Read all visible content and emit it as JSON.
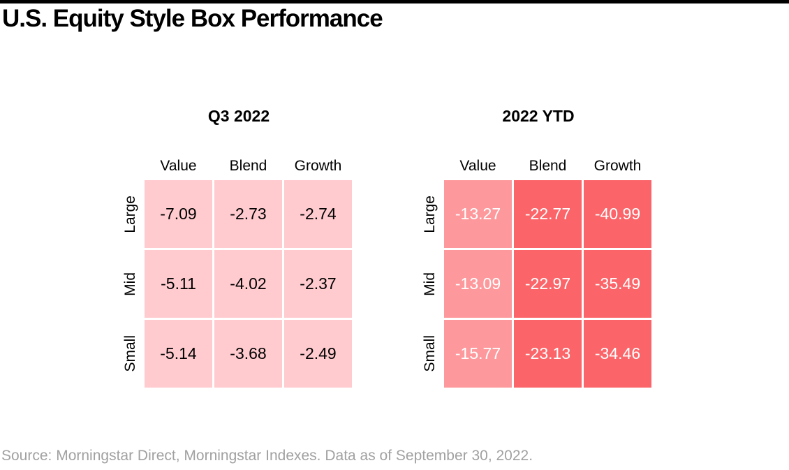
{
  "page": {
    "title": "U.S. Equity Style Box Performance",
    "source_note": "Source: Morningstar Direct, Morningstar Indexes. Data as of September 30, 2022."
  },
  "palette": {
    "accent_bar": "#000000",
    "light_pink": "#FFCBCF",
    "medium_pink": "#FD999C",
    "red": "#FB6468",
    "cell_text_dark": "#000000",
    "cell_text_light": "#FFFFFF",
    "source_text": "#A1A1A1"
  },
  "panels": [
    {
      "title": "Q3 2022",
      "column_headers": [
        "Value",
        "Blend",
        "Growth"
      ],
      "row_headers": [
        "Large",
        "Mid",
        "Small"
      ],
      "rows": [
        {
          "cells": [
            {
              "value": "-7.09",
              "bg": "#FFCBCF",
              "fg": "#000000"
            },
            {
              "value": "-2.73",
              "bg": "#FFCBCF",
              "fg": "#000000"
            },
            {
              "value": "-2.74",
              "bg": "#FFCBCF",
              "fg": "#000000"
            }
          ]
        },
        {
          "cells": [
            {
              "value": "-5.11",
              "bg": "#FFCBCF",
              "fg": "#000000"
            },
            {
              "value": "-4.02",
              "bg": "#FFCBCF",
              "fg": "#000000"
            },
            {
              "value": "-2.37",
              "bg": "#FFCBCF",
              "fg": "#000000"
            }
          ]
        },
        {
          "cells": [
            {
              "value": "-5.14",
              "bg": "#FFCBCF",
              "fg": "#000000"
            },
            {
              "value": "-3.68",
              "bg": "#FFCBCF",
              "fg": "#000000"
            },
            {
              "value": "-2.49",
              "bg": "#FFCBCF",
              "fg": "#000000"
            }
          ]
        }
      ]
    },
    {
      "title": "2022 YTD",
      "column_headers": [
        "Value",
        "Blend",
        "Growth"
      ],
      "row_headers": [
        "Large",
        "Mid",
        "Small"
      ],
      "rows": [
        {
          "cells": [
            {
              "value": "-13.27",
              "bg": "#FD999C",
              "fg": "#FFFFFF"
            },
            {
              "value": "-22.77",
              "bg": "#FB6468",
              "fg": "#FFFFFF"
            },
            {
              "value": "-40.99",
              "bg": "#FB6468",
              "fg": "#FFFFFF"
            }
          ]
        },
        {
          "cells": [
            {
              "value": "-13.09",
              "bg": "#FD999C",
              "fg": "#FFFFFF"
            },
            {
              "value": "-22.97",
              "bg": "#FB6468",
              "fg": "#FFFFFF"
            },
            {
              "value": "-35.49",
              "bg": "#FB6468",
              "fg": "#FFFFFF"
            }
          ]
        },
        {
          "cells": [
            {
              "value": "-15.77",
              "bg": "#FD999C",
              "fg": "#FFFFFF"
            },
            {
              "value": "-23.13",
              "bg": "#FB6468",
              "fg": "#FFFFFF"
            },
            {
              "value": "-34.46",
              "bg": "#FB6468",
              "fg": "#FFFFFF"
            }
          ]
        }
      ]
    }
  ],
  "chart_data": [
    {
      "type": "heatmap",
      "title": "Q3 2022",
      "columns": [
        "Value",
        "Blend",
        "Growth"
      ],
      "rows": [
        "Large",
        "Mid",
        "Small"
      ],
      "values": [
        [
          -7.09,
          -2.73,
          -2.74
        ],
        [
          -5.11,
          -4.02,
          -2.37
        ],
        [
          -5.14,
          -3.68,
          -2.49
        ]
      ],
      "unit": "percent return",
      "color_scale": "lighter pink = less negative, deeper red = more negative"
    },
    {
      "type": "heatmap",
      "title": "2022 YTD",
      "columns": [
        "Value",
        "Blend",
        "Growth"
      ],
      "rows": [
        "Large",
        "Mid",
        "Small"
      ],
      "values": [
        [
          -13.27,
          -22.77,
          -40.99
        ],
        [
          -13.09,
          -22.97,
          -35.49
        ],
        [
          -15.77,
          -23.13,
          -34.46
        ]
      ],
      "unit": "percent return",
      "color_scale": "lighter pink = less negative, deeper red = more negative"
    }
  ]
}
